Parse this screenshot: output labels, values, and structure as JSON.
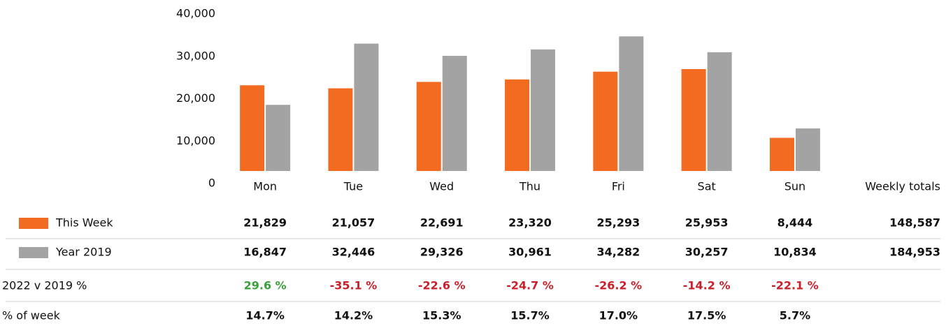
{
  "chart_data": {
    "type": "bar",
    "categories": [
      "Mon",
      "Tue",
      "Wed",
      "Thu",
      "Fri",
      "Sat",
      "Sun"
    ],
    "totals_label": "Weekly totals",
    "series": [
      {
        "name": "This Week",
        "color": "#f26b21",
        "values": [
          21829,
          21057,
          22691,
          23320,
          25293,
          25953,
          8444
        ],
        "value_labels": [
          "21,829",
          "21,057",
          "22,691",
          "23,320",
          "25,293",
          "25,953",
          "8,444"
        ],
        "total_label": "148,587"
      },
      {
        "name": "Year 2019",
        "color": "#a3a3a3",
        "values": [
          16847,
          32446,
          29326,
          30961,
          34282,
          30257,
          10834
        ],
        "value_labels": [
          "16,847",
          "32,446",
          "29,326",
          "30,961",
          "34,282",
          "30,257",
          "10,834"
        ],
        "total_label": "184,953"
      }
    ],
    "ylim": [
      0,
      40000
    ],
    "yticks": [
      {
        "value": 0,
        "label": "0"
      },
      {
        "value": 10000,
        "label": "10,000"
      },
      {
        "value": 20000,
        "label": "20,000"
      },
      {
        "value": 30000,
        "label": "30,000"
      },
      {
        "value": 40000,
        "label": "40,000"
      }
    ],
    "table_rows": [
      {
        "label": "2022 v 2019 %",
        "values": [
          29.6,
          -35.1,
          -22.6,
          -24.7,
          -26.2,
          -14.2,
          -22.1
        ],
        "value_labels": [
          "29.6 %",
          "-35.1 %",
          "-22.6 %",
          "-24.7 %",
          "-26.2 %",
          "-14.2 %",
          "-22.1 %"
        ],
        "colored": true
      },
      {
        "label": "% of week",
        "values": [
          14.7,
          14.2,
          15.3,
          15.7,
          17.0,
          17.5,
          5.7
        ],
        "value_labels": [
          "14.7%",
          "14.2%",
          "15.3%",
          "15.7%",
          "17.0%",
          "17.5%",
          "5.7%"
        ],
        "colored": false
      }
    ]
  }
}
